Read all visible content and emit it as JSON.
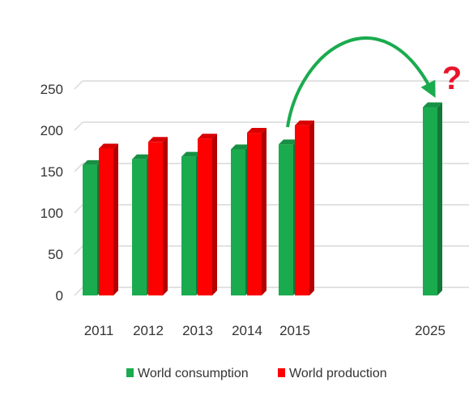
{
  "chart_data": {
    "type": "bar",
    "categories": [
      "2011",
      "2012",
      "2013",
      "2014",
      "2015",
      "2025"
    ],
    "yticks": [
      0,
      50,
      100,
      150,
      200,
      250
    ],
    "ylim": [
      0,
      250
    ],
    "grid": true,
    "legend_position": "bottom",
    "series": [
      {
        "name": "World consumption",
        "color": "#1aab4f",
        "values": [
          158,
          165,
          168,
          177,
          183,
          228
        ]
      },
      {
        "name": "World production",
        "color": "#ff0000",
        "values": [
          178,
          186,
          190,
          197,
          206,
          null
        ]
      }
    ],
    "annotation": {
      "text": "?",
      "color": "#e8142b",
      "arrow_color": "#1aab4f"
    }
  }
}
